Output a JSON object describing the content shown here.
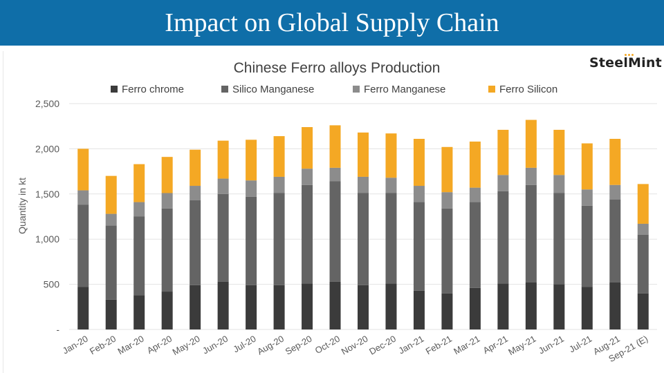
{
  "slide": {
    "title": "Impact on Global Supply Chain"
  },
  "logo": {
    "text": "SteelMint"
  },
  "colors": {
    "banner": "#0f6ea8",
    "ferro_chrome": "#3b3b3b",
    "silico_manganese": "#646464",
    "ferro_manganese": "#8c8c8c",
    "ferro_silicon": "#f4a824"
  },
  "chart_data": {
    "type": "bar",
    "stacked": true,
    "title": "Chinese Ferro alloys Production",
    "ylabel": "Quantity in kt",
    "xlabel": "",
    "ylim": [
      0,
      2500
    ],
    "yticks": [
      0,
      500,
      1000,
      1500,
      2000,
      2500
    ],
    "ytick_labels": [
      "-",
      "500",
      "1,000",
      "1,500",
      "2,000",
      "2,500"
    ],
    "legend_position": "top",
    "grid": "horizontal",
    "categories": [
      "Jan-20",
      "Feb-20",
      "Mar-20",
      "Apr-20",
      "May-20",
      "Jun-20",
      "Jul-20",
      "Aug-20",
      "Sep-20",
      "Oct-20",
      "Nov-20",
      "Dec-20",
      "Jan-21",
      "Feb-21",
      "Mar-21",
      "Apr-21",
      "May-21",
      "Jun-21",
      "Jul-21",
      "Aug-21",
      "Sep-21 (E)"
    ],
    "series": [
      {
        "name": "Ferro chrome",
        "color": "#3b3b3b",
        "values": [
          470,
          330,
          380,
          420,
          490,
          530,
          490,
          490,
          510,
          530,
          490,
          510,
          430,
          400,
          460,
          510,
          520,
          500,
          470,
          520,
          400
        ]
      },
      {
        "name": "Silico Manganese",
        "color": "#646464",
        "values": [
          910,
          820,
          870,
          920,
          940,
          970,
          980,
          1020,
          1090,
          1110,
          1020,
          1000,
          980,
          940,
          950,
          1020,
          1080,
          1010,
          900,
          920,
          650
        ]
      },
      {
        "name": "Ferro Manganese",
        "color": "#8c8c8c",
        "values": [
          160,
          130,
          160,
          170,
          160,
          170,
          180,
          180,
          180,
          150,
          180,
          170,
          180,
          180,
          160,
          180,
          190,
          200,
          180,
          160,
          120
        ]
      },
      {
        "name": "Ferro Silicon",
        "color": "#f4a824",
        "values": [
          460,
          420,
          420,
          400,
          400,
          420,
          450,
          450,
          460,
          470,
          490,
          490,
          520,
          500,
          510,
          500,
          530,
          500,
          510,
          510,
          440
        ]
      }
    ]
  }
}
